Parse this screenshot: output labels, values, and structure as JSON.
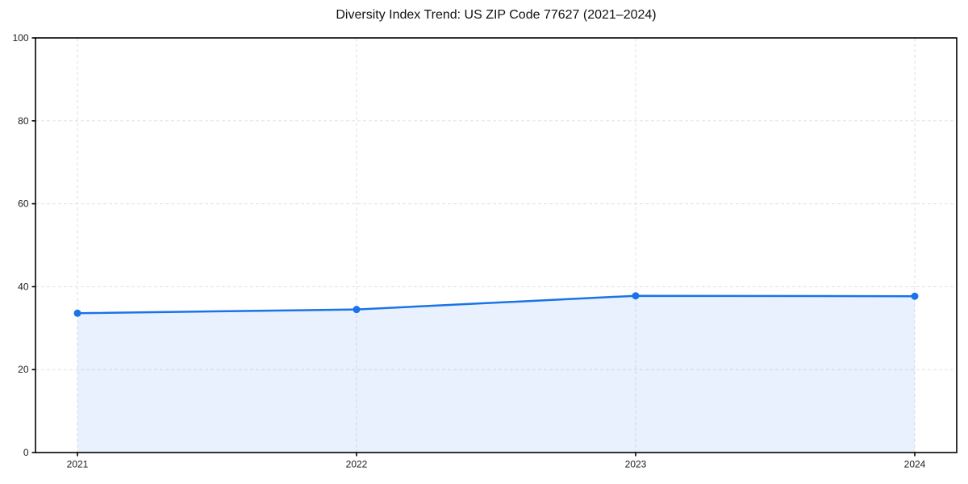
{
  "chart_data": {
    "type": "area",
    "title": "Diversity Index Trend: US ZIP Code 77627 (2021–2024)",
    "x": [
      "2021",
      "2022",
      "2023",
      "2024"
    ],
    "series": [
      {
        "name": "Diversity Index",
        "values": [
          33.6,
          34.5,
          37.8,
          37.7
        ]
      }
    ],
    "xlabel": "",
    "ylabel": "",
    "ylim": [
      0,
      100
    ],
    "yticks": [
      0,
      20,
      40,
      60,
      80,
      100
    ],
    "grid": "dashed-both-axes",
    "legend": "none",
    "marker": "circle",
    "colors": {
      "line": "#1a73e8",
      "fill": "#1a73e8",
      "fill_opacity": "0.10",
      "grid": "#e0e0e0",
      "axis": "#000000",
      "tick_text": "#1a1a1a",
      "background": "#ffffff"
    }
  }
}
